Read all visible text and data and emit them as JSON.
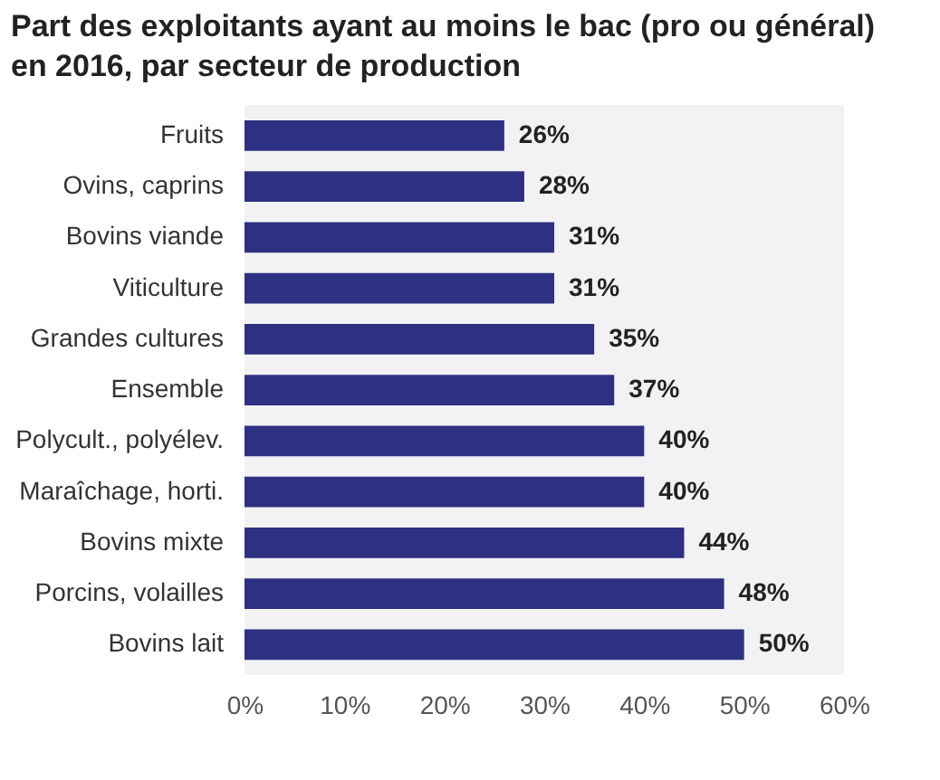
{
  "chart_data": {
    "type": "bar",
    "orientation": "horizontal",
    "title": "Part des exploitants ayant au moins le bac (pro ou général) en 2016, par secteur de production",
    "categories": [
      "Fruits",
      "Ovins, caprins",
      "Bovins viande",
      "Viticulture",
      "Grandes cultures",
      "Ensemble",
      "Polycult., polyélev.",
      "Maraîchage, horti.",
      "Bovins mixte",
      "Porcins, volailles",
      "Bovins lait"
    ],
    "values": [
      26,
      28,
      31,
      31,
      35,
      37,
      40,
      40,
      44,
      48,
      50
    ],
    "value_labels": [
      "26%",
      "28%",
      "31%",
      "31%",
      "35%",
      "37%",
      "40%",
      "40%",
      "44%",
      "48%",
      "50%"
    ],
    "color": "#2e3182",
    "xlim": [
      0,
      60
    ],
    "xticks": [
      {
        "value": 0,
        "label": "0%"
      },
      {
        "value": 10,
        "label": "10%"
      },
      {
        "value": 20,
        "label": "20%"
      },
      {
        "value": 30,
        "label": "30%"
      },
      {
        "value": 40,
        "label": "40%"
      },
      {
        "value": 50,
        "label": "50%"
      },
      {
        "value": 60,
        "label": "60%"
      }
    ],
    "grid": false
  }
}
